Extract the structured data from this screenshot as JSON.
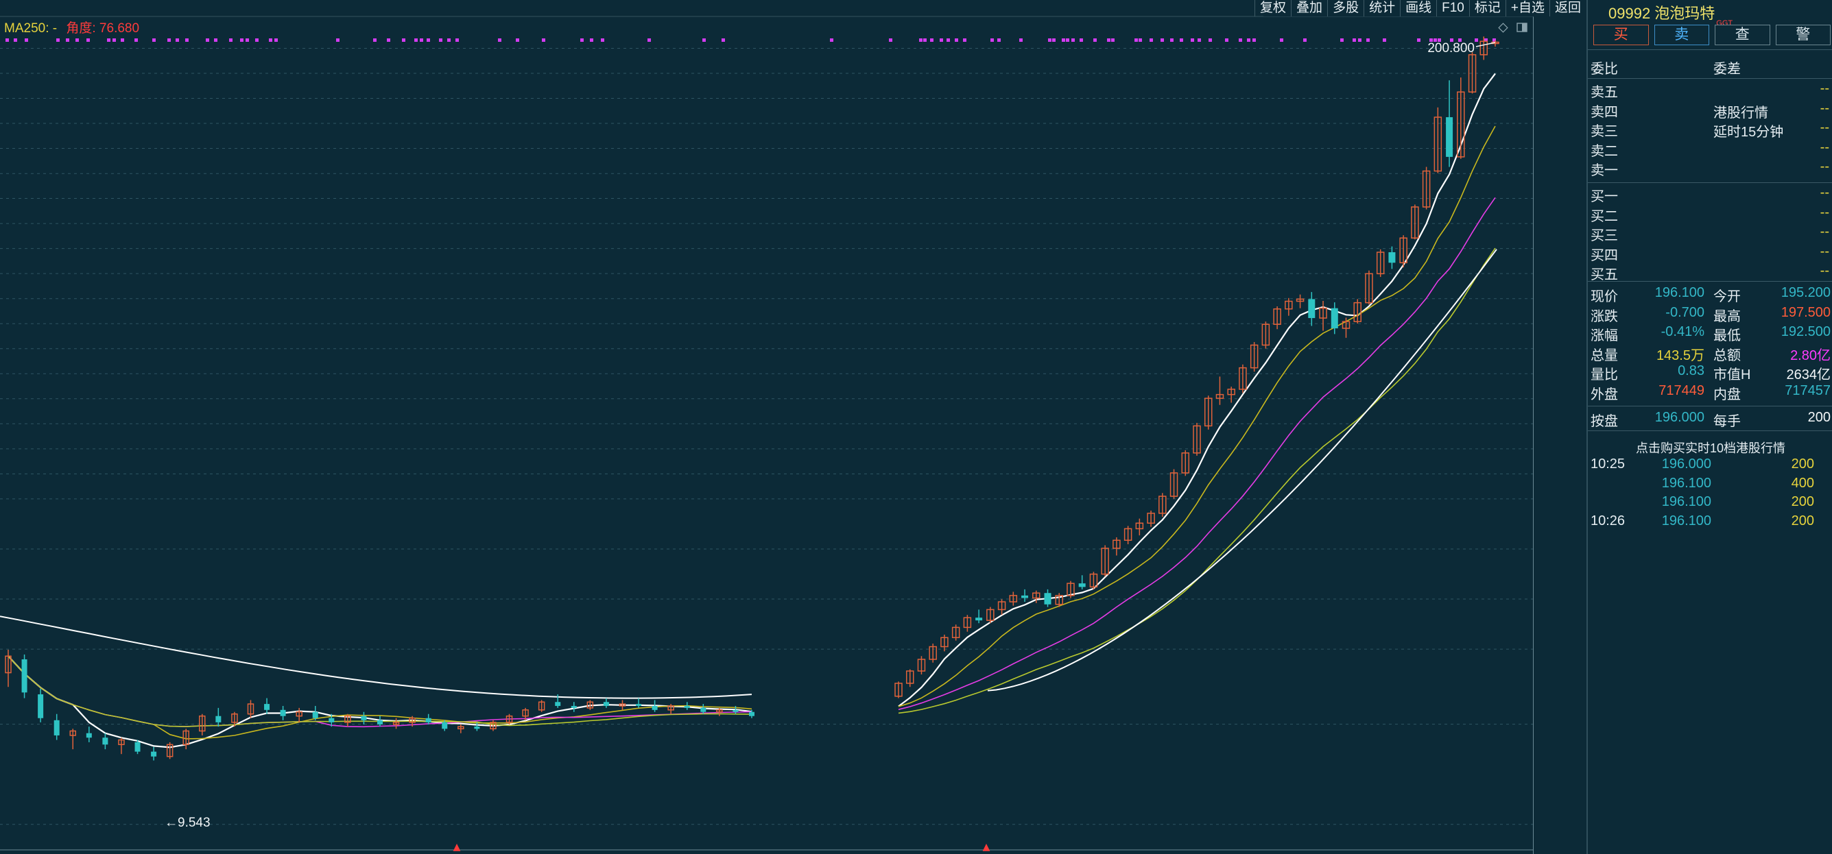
{
  "toolbar": {
    "items": [
      "复权",
      "叠加",
      "多股",
      "统计",
      "画线",
      "F10",
      "标记",
      "+自选",
      "返回"
    ]
  },
  "indicator": {
    "name": "MA250: -",
    "angle": "角度: 76.680"
  },
  "stock": {
    "code_name": "09992 泡泡玛特",
    "tag": "GGT"
  },
  "trade_tabs": {
    "buy": "买",
    "sell": "卖",
    "query": "查",
    "alert": "警"
  },
  "order_book": {
    "ratio_label": "委比",
    "diff_label": "委差",
    "asks": [
      {
        "label": "卖五",
        "value": "--"
      },
      {
        "label": "卖四",
        "value": "--"
      },
      {
        "label": "卖三",
        "value": "--"
      },
      {
        "label": "卖二",
        "value": "--"
      },
      {
        "label": "卖一",
        "value": "--"
      }
    ],
    "notice1": "港股行情",
    "notice2": "延时15分钟",
    "bids": [
      {
        "label": "买一",
        "value": "--"
      },
      {
        "label": "买二",
        "value": "--"
      },
      {
        "label": "买三",
        "value": "--"
      },
      {
        "label": "买四",
        "value": "--"
      },
      {
        "label": "买五",
        "value": "--"
      }
    ]
  },
  "quote": {
    "price_label": "现价",
    "price": "196.100",
    "open_label": "今开",
    "open": "195.200",
    "change_label": "涨跌",
    "change": "-0.700",
    "high_label": "最高",
    "high": "197.500",
    "pct_label": "涨幅",
    "pct": "-0.41%",
    "low_label": "最低",
    "low": "192.500",
    "vol_label": "总量",
    "vol": "143.5万",
    "amount_label": "总额",
    "amount": "2.80亿",
    "vr_label": "量比",
    "vr": "0.83",
    "mcap_label": "市值H",
    "mcap": "2634亿",
    "outer_label": "外盘",
    "outer": "717449",
    "inner_label": "内盘",
    "inner": "717457",
    "bid_label": "按盘",
    "bid": "196.000",
    "lot_label": "每手",
    "lot": "200"
  },
  "ticks": {
    "promo": "点击购买实时10档港股行情",
    "rows": [
      {
        "time": "10:25",
        "price": "196.000",
        "vol": "200"
      },
      {
        "time": "",
        "price": "196.100",
        "vol": "400"
      },
      {
        "time": "",
        "price": "196.100",
        "vol": "200"
      },
      {
        "time": "10:26",
        "price": "196.100",
        "vol": "200"
      }
    ]
  },
  "colors": {
    "background": "#0c2a37",
    "up": "#e0623a",
    "down": "#2ec4c4",
    "ma_white": "#ffffff",
    "ma_yellow": "#c9b81e",
    "ma_magenta": "#e63ce6",
    "ma_lime": "#b9c92e",
    "grid": "#2e5563",
    "axis_text": "#e04a3a",
    "markers": "#d33cf0"
  },
  "chart_data": {
    "type": "candlestick",
    "scale": "log",
    "y_ticks": [
      "191.1",
      "172.0",
      "154.8",
      "139.3",
      "125.4",
      "112.8",
      "101.6",
      "91.40",
      "82.26",
      "74.04",
      "66.63",
      "59.97",
      "53.97",
      "48.58",
      "43.72",
      "39.35",
      "35.41",
      "31.87",
      "28.68",
      "23.23",
      "18.82",
      "15.24",
      "11.11",
      "7.291"
    ],
    "annotations": {
      "high": "200.800",
      "low": "←9.543"
    },
    "candles": [
      {
        "o": 13.8,
        "h": 15.2,
        "l": 13.0,
        "c": 14.8
      },
      {
        "o": 14.6,
        "h": 14.9,
        "l": 12.4,
        "c": 12.7
      },
      {
        "o": 12.6,
        "h": 12.9,
        "l": 11.2,
        "c": 11.4
      },
      {
        "o": 11.3,
        "h": 11.6,
        "l": 10.4,
        "c": 10.6
      },
      {
        "o": 10.6,
        "h": 10.9,
        "l": 10.0,
        "c": 10.8
      },
      {
        "o": 10.7,
        "h": 11.0,
        "l": 10.3,
        "c": 10.5
      },
      {
        "o": 10.5,
        "h": 10.7,
        "l": 10.0,
        "c": 10.2
      },
      {
        "o": 10.2,
        "h": 10.5,
        "l": 9.8,
        "c": 10.4
      },
      {
        "o": 10.3,
        "h": 10.4,
        "l": 9.8,
        "c": 9.9
      },
      {
        "o": 9.9,
        "h": 10.1,
        "l": 9.54,
        "c": 9.7
      },
      {
        "o": 9.7,
        "h": 10.3,
        "l": 9.6,
        "c": 10.2
      },
      {
        "o": 10.2,
        "h": 10.9,
        "l": 10.0,
        "c": 10.8
      },
      {
        "o": 10.8,
        "h": 11.6,
        "l": 10.6,
        "c": 11.5
      },
      {
        "o": 11.5,
        "h": 11.9,
        "l": 11.0,
        "c": 11.2
      },
      {
        "o": 11.2,
        "h": 11.7,
        "l": 11.0,
        "c": 11.6
      },
      {
        "o": 11.6,
        "h": 12.3,
        "l": 11.4,
        "c": 12.1
      },
      {
        "o": 12.1,
        "h": 12.4,
        "l": 11.6,
        "c": 11.8
      },
      {
        "o": 11.8,
        "h": 12.0,
        "l": 11.3,
        "c": 11.5
      },
      {
        "o": 11.5,
        "h": 11.9,
        "l": 11.2,
        "c": 11.7
      },
      {
        "o": 11.7,
        "h": 12.0,
        "l": 11.3,
        "c": 11.4
      },
      {
        "o": 11.4,
        "h": 11.6,
        "l": 11.0,
        "c": 11.2
      },
      {
        "o": 11.2,
        "h": 11.6,
        "l": 11.0,
        "c": 11.5
      },
      {
        "o": 11.5,
        "h": 11.7,
        "l": 11.1,
        "c": 11.3
      },
      {
        "o": 11.3,
        "h": 11.5,
        "l": 11.0,
        "c": 11.1
      },
      {
        "o": 11.1,
        "h": 11.4,
        "l": 10.9,
        "c": 11.2
      },
      {
        "o": 11.2,
        "h": 11.5,
        "l": 11.0,
        "c": 11.4
      },
      {
        "o": 11.4,
        "h": 11.6,
        "l": 11.1,
        "c": 11.2
      },
      {
        "o": 11.2,
        "h": 11.3,
        "l": 10.8,
        "c": 10.9
      },
      {
        "o": 10.9,
        "h": 11.1,
        "l": 10.7,
        "c": 11.0
      },
      {
        "o": 11.0,
        "h": 11.2,
        "l": 10.8,
        "c": 10.9
      },
      {
        "o": 10.9,
        "h": 11.3,
        "l": 10.8,
        "c": 11.2
      },
      {
        "o": 11.2,
        "h": 11.6,
        "l": 11.1,
        "c": 11.5
      },
      {
        "o": 11.5,
        "h": 11.9,
        "l": 11.3,
        "c": 11.8
      },
      {
        "o": 11.8,
        "h": 12.3,
        "l": 11.7,
        "c": 12.2
      },
      {
        "o": 12.2,
        "h": 12.6,
        "l": 11.9,
        "c": 12.0
      },
      {
        "o": 12.0,
        "h": 12.2,
        "l": 11.7,
        "c": 11.9
      },
      {
        "o": 11.9,
        "h": 12.3,
        "l": 11.8,
        "c": 12.2
      },
      {
        "o": 12.2,
        "h": 12.4,
        "l": 11.9,
        "c": 12.0
      },
      {
        "o": 12.0,
        "h": 12.3,
        "l": 11.8,
        "c": 12.1
      },
      {
        "o": 12.1,
        "h": 12.4,
        "l": 11.9,
        "c": 12.0
      },
      {
        "o": 12.0,
        "h": 12.3,
        "l": 11.7,
        "c": 11.8
      },
      {
        "o": 11.8,
        "h": 12.1,
        "l": 11.6,
        "c": 12.0
      },
      {
        "o": 12.0,
        "h": 12.2,
        "l": 11.8,
        "c": 11.9
      },
      {
        "o": 11.9,
        "h": 12.1,
        "l": 11.6,
        "c": 11.7
      },
      {
        "o": 11.7,
        "h": 11.9,
        "l": 11.5,
        "c": 11.8
      },
      {
        "o": 11.8,
        "h": 12.0,
        "l": 11.6,
        "c": 11.7
      },
      {
        "o": 11.7,
        "h": 11.8,
        "l": 11.4,
        "c": 11.5
      },
      {
        "o": 12.5,
        "h": 13.3,
        "l": 12.4,
        "c": 13.2
      },
      {
        "o": 13.2,
        "h": 14.0,
        "l": 13.0,
        "c": 13.9
      },
      {
        "o": 13.9,
        "h": 14.8,
        "l": 13.7,
        "c": 14.6
      },
      {
        "o": 14.6,
        "h": 15.6,
        "l": 14.4,
        "c": 15.4
      },
      {
        "o": 15.4,
        "h": 16.2,
        "l": 15.1,
        "c": 16.0
      },
      {
        "o": 16.0,
        "h": 16.9,
        "l": 15.8,
        "c": 16.7
      },
      {
        "o": 16.7,
        "h": 17.6,
        "l": 16.4,
        "c": 17.4
      },
      {
        "o": 17.4,
        "h": 18.0,
        "l": 17.0,
        "c": 17.2
      },
      {
        "o": 17.2,
        "h": 18.2,
        "l": 17.0,
        "c": 18.0
      },
      {
        "o": 18.0,
        "h": 18.8,
        "l": 17.6,
        "c": 18.6
      },
      {
        "o": 18.6,
        "h": 19.4,
        "l": 18.3,
        "c": 19.1
      },
      {
        "o": 19.1,
        "h": 19.6,
        "l": 18.6,
        "c": 18.9
      },
      {
        "o": 18.9,
        "h": 19.5,
        "l": 18.5,
        "c": 19.3
      },
      {
        "o": 19.3,
        "h": 19.6,
        "l": 18.2,
        "c": 18.4
      },
      {
        "o": 18.4,
        "h": 19.3,
        "l": 18.2,
        "c": 19.1
      },
      {
        "o": 19.1,
        "h": 20.3,
        "l": 18.9,
        "c": 20.1
      },
      {
        "o": 20.1,
        "h": 20.8,
        "l": 19.6,
        "c": 19.8
      },
      {
        "o": 19.8,
        "h": 21.1,
        "l": 19.6,
        "c": 20.9
      },
      {
        "o": 20.9,
        "h": 23.6,
        "l": 20.7,
        "c": 23.3
      },
      {
        "o": 23.3,
        "h": 24.4,
        "l": 22.6,
        "c": 24.1
      },
      {
        "o": 24.1,
        "h": 25.6,
        "l": 23.7,
        "c": 25.3
      },
      {
        "o": 25.3,
        "h": 26.4,
        "l": 24.6,
        "c": 25.9
      },
      {
        "o": 25.9,
        "h": 27.3,
        "l": 25.5,
        "c": 27.0
      },
      {
        "o": 27.0,
        "h": 29.4,
        "l": 26.6,
        "c": 29.0
      },
      {
        "o": 29.0,
        "h": 32.5,
        "l": 28.7,
        "c": 32.0
      },
      {
        "o": 32.0,
        "h": 35.2,
        "l": 31.6,
        "c": 34.8
      },
      {
        "o": 34.8,
        "h": 39.5,
        "l": 34.4,
        "c": 39.0
      },
      {
        "o": 39.0,
        "h": 44.3,
        "l": 38.4,
        "c": 43.8
      },
      {
        "o": 43.8,
        "h": 48.0,
        "l": 42.6,
        "c": 44.5
      },
      {
        "o": 44.5,
        "h": 46.0,
        "l": 43.0,
        "c": 45.5
      },
      {
        "o": 45.5,
        "h": 50.5,
        "l": 44.8,
        "c": 49.8
      },
      {
        "o": 49.8,
        "h": 55.5,
        "l": 49.0,
        "c": 54.8
      },
      {
        "o": 54.8,
        "h": 60.5,
        "l": 54.0,
        "c": 59.8
      },
      {
        "o": 59.8,
        "h": 64.5,
        "l": 58.6,
        "c": 63.8
      },
      {
        "o": 63.8,
        "h": 66.8,
        "l": 62.0,
        "c": 65.9
      },
      {
        "o": 65.9,
        "h": 67.8,
        "l": 64.0,
        "c": 66.5
      },
      {
        "o": 66.5,
        "h": 68.5,
        "l": 59.4,
        "c": 61.4
      },
      {
        "o": 61.4,
        "h": 66.0,
        "l": 58.2,
        "c": 64.0
      },
      {
        "o": 64.0,
        "h": 65.6,
        "l": 57.4,
        "c": 58.8
      },
      {
        "o": 58.8,
        "h": 61.5,
        "l": 56.5,
        "c": 60.5
      },
      {
        "o": 60.5,
        "h": 66.5,
        "l": 60.0,
        "c": 65.5
      },
      {
        "o": 65.5,
        "h": 75.0,
        "l": 65.0,
        "c": 74.0
      },
      {
        "o": 74.0,
        "h": 82.0,
        "l": 73.0,
        "c": 81.0
      },
      {
        "o": 81.0,
        "h": 83.0,
        "l": 75.5,
        "c": 77.5
      },
      {
        "o": 77.5,
        "h": 87.0,
        "l": 76.0,
        "c": 86.0
      },
      {
        "o": 86.0,
        "h": 99.0,
        "l": 85.5,
        "c": 98.0
      },
      {
        "o": 98.0,
        "h": 116.0,
        "l": 97.0,
        "c": 114.0
      },
      {
        "o": 114.0,
        "h": 149.0,
        "l": 113.0,
        "c": 143.0
      },
      {
        "o": 143.0,
        "h": 167.0,
        "l": 116.0,
        "c": 121.0
      },
      {
        "o": 121.0,
        "h": 169.0,
        "l": 120.0,
        "c": 159.0
      },
      {
        "o": 159.0,
        "h": 188.0,
        "l": 158.0,
        "c": 186.0
      },
      {
        "o": 186.0,
        "h": 200.8,
        "l": 182.0,
        "c": 196.8
      },
      {
        "o": 195.2,
        "h": 197.5,
        "l": 192.5,
        "c": 196.1
      }
    ]
  }
}
